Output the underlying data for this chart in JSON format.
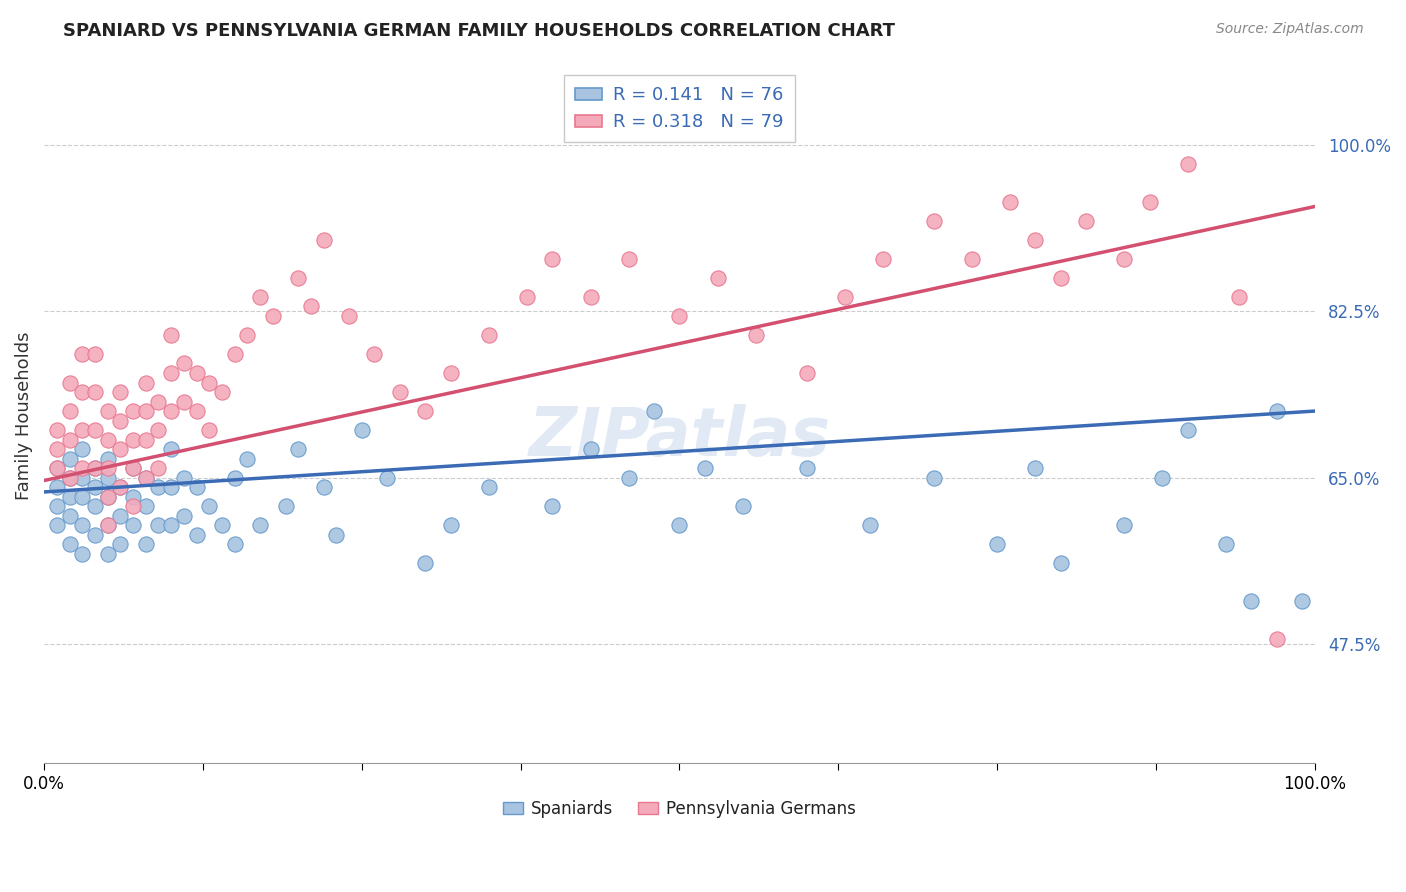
{
  "title": "SPANIARD VS PENNSYLVANIA GERMAN FAMILY HOUSEHOLDS CORRELATION CHART",
  "source": "Source: ZipAtlas.com",
  "ylabel": "Family Households",
  "xlim": [
    0,
    1.0
  ],
  "ylim": [
    0.35,
    1.08
  ],
  "yticks": [
    0.475,
    0.65,
    0.825,
    1.0
  ],
  "ytick_labels": [
    "47.5%",
    "65.0%",
    "82.5%",
    "100.0%"
  ],
  "xtick_labels_show": [
    "0.0%",
    "100.0%"
  ],
  "blue_R": 0.141,
  "blue_N": 76,
  "pink_R": 0.318,
  "pink_N": 79,
  "blue_color": "#A8C4E0",
  "pink_color": "#F4AABB",
  "blue_edge_color": "#6699CC",
  "pink_edge_color": "#E87890",
  "blue_line_color": "#3B6BB5",
  "pink_line_color": "#D45070",
  "watermark": "ZIPatlas",
  "legend_series_blue": "Spaniards",
  "legend_series_pink": "Pennsylvania Germans",
  "blue_line_x0": 0.0,
  "blue_line_y0": 0.635,
  "blue_line_x1": 1.0,
  "blue_line_y1": 0.72,
  "pink_line_x0": 0.0,
  "pink_line_y0": 0.647,
  "pink_line_x1": 1.0,
  "pink_line_y1": 0.935,
  "blue_x": [
    0.01,
    0.01,
    0.01,
    0.01,
    0.02,
    0.02,
    0.02,
    0.02,
    0.02,
    0.03,
    0.03,
    0.03,
    0.03,
    0.03,
    0.04,
    0.04,
    0.04,
    0.04,
    0.05,
    0.05,
    0.05,
    0.05,
    0.05,
    0.06,
    0.06,
    0.06,
    0.07,
    0.07,
    0.07,
    0.08,
    0.08,
    0.08,
    0.09,
    0.09,
    0.1,
    0.1,
    0.1,
    0.11,
    0.11,
    0.12,
    0.12,
    0.13,
    0.14,
    0.15,
    0.15,
    0.16,
    0.17,
    0.19,
    0.2,
    0.22,
    0.23,
    0.25,
    0.27,
    0.3,
    0.32,
    0.35,
    0.4,
    0.43,
    0.46,
    0.48,
    0.5,
    0.52,
    0.55,
    0.6,
    0.65,
    0.7,
    0.75,
    0.78,
    0.8,
    0.85,
    0.88,
    0.9,
    0.93,
    0.95,
    0.97,
    0.99
  ],
  "blue_y": [
    0.66,
    0.64,
    0.62,
    0.6,
    0.67,
    0.65,
    0.63,
    0.61,
    0.58,
    0.68,
    0.65,
    0.63,
    0.6,
    0.57,
    0.66,
    0.64,
    0.62,
    0.59,
    0.67,
    0.65,
    0.63,
    0.6,
    0.57,
    0.64,
    0.61,
    0.58,
    0.66,
    0.63,
    0.6,
    0.65,
    0.62,
    0.58,
    0.64,
    0.6,
    0.68,
    0.64,
    0.6,
    0.65,
    0.61,
    0.64,
    0.59,
    0.62,
    0.6,
    0.65,
    0.58,
    0.67,
    0.6,
    0.62,
    0.68,
    0.64,
    0.59,
    0.7,
    0.65,
    0.56,
    0.6,
    0.64,
    0.62,
    0.68,
    0.65,
    0.72,
    0.6,
    0.66,
    0.62,
    0.66,
    0.6,
    0.65,
    0.58,
    0.66,
    0.56,
    0.6,
    0.65,
    0.7,
    0.58,
    0.52,
    0.72,
    0.52
  ],
  "pink_x": [
    0.01,
    0.01,
    0.01,
    0.02,
    0.02,
    0.02,
    0.02,
    0.03,
    0.03,
    0.03,
    0.03,
    0.04,
    0.04,
    0.04,
    0.04,
    0.05,
    0.05,
    0.05,
    0.05,
    0.05,
    0.06,
    0.06,
    0.06,
    0.06,
    0.07,
    0.07,
    0.07,
    0.07,
    0.08,
    0.08,
    0.08,
    0.08,
    0.09,
    0.09,
    0.09,
    0.1,
    0.1,
    0.1,
    0.11,
    0.11,
    0.12,
    0.12,
    0.13,
    0.13,
    0.14,
    0.15,
    0.16,
    0.17,
    0.18,
    0.2,
    0.21,
    0.22,
    0.24,
    0.26,
    0.28,
    0.3,
    0.32,
    0.35,
    0.38,
    0.4,
    0.43,
    0.46,
    0.5,
    0.53,
    0.56,
    0.6,
    0.63,
    0.66,
    0.7,
    0.73,
    0.76,
    0.78,
    0.8,
    0.82,
    0.85,
    0.87,
    0.9,
    0.94,
    0.97
  ],
  "pink_y": [
    0.7,
    0.68,
    0.66,
    0.75,
    0.72,
    0.69,
    0.65,
    0.78,
    0.74,
    0.7,
    0.66,
    0.78,
    0.74,
    0.7,
    0.66,
    0.72,
    0.69,
    0.66,
    0.63,
    0.6,
    0.74,
    0.71,
    0.68,
    0.64,
    0.72,
    0.69,
    0.66,
    0.62,
    0.75,
    0.72,
    0.69,
    0.65,
    0.73,
    0.7,
    0.66,
    0.8,
    0.76,
    0.72,
    0.77,
    0.73,
    0.76,
    0.72,
    0.75,
    0.7,
    0.74,
    0.78,
    0.8,
    0.84,
    0.82,
    0.86,
    0.83,
    0.9,
    0.82,
    0.78,
    0.74,
    0.72,
    0.76,
    0.8,
    0.84,
    0.88,
    0.84,
    0.88,
    0.82,
    0.86,
    0.8,
    0.76,
    0.84,
    0.88,
    0.92,
    0.88,
    0.94,
    0.9,
    0.86,
    0.92,
    0.88,
    0.94,
    0.98,
    0.84,
    0.48
  ]
}
